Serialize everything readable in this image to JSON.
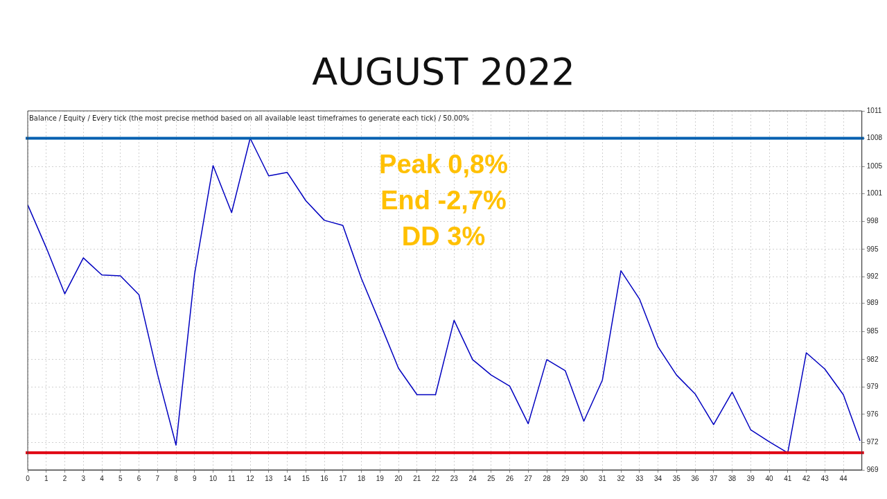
{
  "chart_data": {
    "type": "line",
    "title": "AUGUST 2022",
    "annotations": [
      "Balance / Equity / Every tick (the most precise method based on all available least timeframes to generate each tick) / 50.00%",
      "Peak 0,8%",
      "End -2,7%",
      "DD 3%"
    ],
    "series": [
      {
        "color": "#0000c0",
        "x": [
          0,
          1,
          2,
          3,
          4,
          5,
          6,
          7,
          8,
          9,
          10,
          11,
          12,
          13,
          14,
          15,
          16,
          17,
          18,
          19,
          20,
          21,
          22,
          23,
          24,
          25,
          26,
          27,
          28,
          29,
          30,
          31,
          32,
          33,
          34,
          35,
          36,
          37,
          38,
          39,
          40,
          41,
          42,
          43,
          44,
          44.9
        ],
        "values": [
          1000.0,
          995.0,
          989.6,
          993.8,
          991.8,
          991.7,
          989.5,
          980.2,
          971.9,
          991.9,
          1004.6,
          999.1,
          1007.8,
          1003.4,
          1003.8,
          1000.5,
          998.2,
          997.6,
          991.4,
          986.2,
          980.9,
          977.8,
          977.8,
          986.5,
          981.9,
          980.1,
          978.8,
          974.4,
          981.9,
          980.6,
          974.7,
          979.5,
          992.3,
          989.0,
          983.4,
          980.1,
          977.9,
          974.3,
          978.1,
          973.7,
          972.3,
          971.0,
          982.7,
          980.8,
          977.8,
          972.4
        ]
      }
    ],
    "xlim": [
      0,
      45
    ],
    "xticks": [
      0,
      1,
      2,
      3,
      4,
      5,
      6,
      7,
      8,
      9,
      10,
      11,
      12,
      13,
      14,
      15,
      16,
      17,
      18,
      19,
      20,
      21,
      22,
      23,
      24,
      25,
      26,
      27,
      28,
      29,
      30,
      31,
      32,
      33,
      34,
      35,
      36,
      37,
      38,
      39,
      40,
      41,
      42,
      43,
      44
    ],
    "ylim": [
      969,
      1011
    ],
    "yticks": [
      969,
      {
        "value": 972.2,
        "label": "972"
      },
      {
        "value": 975.5,
        "label": "976"
      },
      {
        "value": 978.7,
        "label": "979"
      },
      {
        "value": 981.9,
        "label": "982"
      },
      {
        "value": 985.2,
        "label": "985"
      },
      {
        "value": 988.5,
        "label": "989"
      },
      {
        "value": 991.6,
        "label": "992"
      },
      {
        "value": 994.8,
        "label": "995"
      },
      {
        "value": 998.1,
        "label": "998"
      },
      {
        "value": 1001.3,
        "label": "1001"
      },
      {
        "value": 1004.5,
        "label": "1005"
      },
      {
        "value": 1007.8,
        "label": "1008"
      },
      1011
    ],
    "ref_lines": [
      {
        "axis": "y",
        "value": 1007.8,
        "color": "#0060b0"
      },
      {
        "axis": "y",
        "value": 971.0,
        "color": "#e00010"
      }
    ],
    "grid": true,
    "marker": "none",
    "line_style": "solid",
    "legend": false
  }
}
